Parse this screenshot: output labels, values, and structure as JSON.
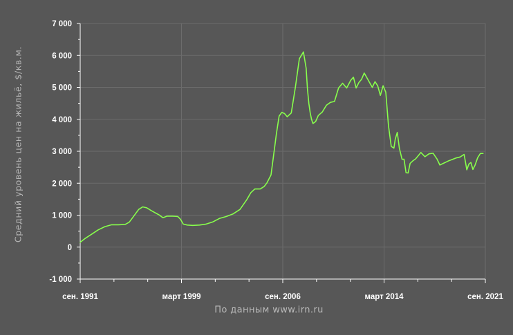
{
  "chart_data": {
    "type": "line",
    "ylabel": "Средний уровень цен на жильё, $/кв.м.",
    "source_note": "По данным www.irn.ru",
    "ylim": [
      -1000,
      7000
    ],
    "xlim": [
      1991.67,
      2021.67
    ],
    "grid": true,
    "colors": {
      "background": "#575757",
      "grid": "#6c6c6c",
      "axis": "#ffffff",
      "text": "#ffffff",
      "line": "#88ff4c"
    },
    "y_ticks": [
      {
        "value": 7000,
        "label": "7 000"
      },
      {
        "value": 6000,
        "label": "6 000"
      },
      {
        "value": 5000,
        "label": "5 000"
      },
      {
        "value": 4000,
        "label": "4 000"
      },
      {
        "value": 3000,
        "label": "3 000"
      },
      {
        "value": 2000,
        "label": "2 000"
      },
      {
        "value": 1000,
        "label": "1 000"
      },
      {
        "value": 0,
        "label": "0"
      },
      {
        "value": -1000,
        "label": "-1 000"
      }
    ],
    "x_ticks": [
      {
        "value": 1991.67,
        "label": "сен. 1991"
      },
      {
        "value": 1999.17,
        "label": "март 1999"
      },
      {
        "value": 2006.67,
        "label": "сен. 2006"
      },
      {
        "value": 2014.17,
        "label": "март 2014"
      },
      {
        "value": 2021.67,
        "label": "сен. 2021"
      }
    ],
    "series": [
      {
        "x": [
          1991.67,
          1992.0,
          1992.5,
          1993.0,
          1993.5,
          1994.0,
          1994.5,
          1995.0,
          1995.3,
          1995.6,
          1996.0,
          1996.3,
          1996.6,
          1996.9,
          1997.2,
          1997.5,
          1997.8,
          1998.1,
          1998.5,
          1998.9,
          1999.1,
          1999.3,
          1999.6,
          2000.0,
          2000.5,
          2001.0,
          2001.5,
          2002.0,
          2002.5,
          2003.0,
          2003.5,
          2004.0,
          2004.3,
          2004.6,
          2005.0,
          2005.3,
          2005.5,
          2005.8,
          2006.0,
          2006.2,
          2006.4,
          2006.6,
          2006.8,
          2007.0,
          2007.3,
          2007.6,
          2007.9,
          2008.2,
          2008.4,
          2008.5,
          2008.6,
          2008.7,
          2008.8,
          2008.9,
          2009.1,
          2009.3,
          2009.6,
          2009.9,
          2010.2,
          2010.5,
          2010.8,
          2011.1,
          2011.4,
          2011.7,
          2011.9,
          2012.1,
          2012.3,
          2012.5,
          2012.7,
          2012.9,
          2013.1,
          2013.3,
          2013.5,
          2013.7,
          2013.9,
          2014.1,
          2014.3,
          2014.5,
          2014.7,
          2014.9,
          2015.0,
          2015.15,
          2015.3,
          2015.5,
          2015.65,
          2015.8,
          2015.95,
          2016.1,
          2016.3,
          2016.5,
          2016.7,
          2016.9,
          2017.2,
          2017.5,
          2017.8,
          2018.1,
          2018.3,
          2018.6,
          2018.9,
          2019.2,
          2019.5,
          2019.8,
          2020.1,
          2020.3,
          2020.45,
          2020.6,
          2020.75,
          2020.9,
          2021.1,
          2021.3,
          2021.5
        ],
        "y": [
          150,
          260,
          400,
          540,
          640,
          700,
          700,
          710,
          780,
          950,
          1180,
          1260,
          1230,
          1150,
          1080,
          1010,
          920,
          970,
          970,
          960,
          870,
          720,
          690,
          680,
          690,
          720,
          790,
          900,
          960,
          1040,
          1180,
          1480,
          1700,
          1820,
          1820,
          1900,
          2010,
          2260,
          2900,
          3550,
          4100,
          4220,
          4180,
          4080,
          4200,
          5000,
          5900,
          6110,
          5600,
          4950,
          4500,
          4200,
          4000,
          3870,
          3930,
          4120,
          4230,
          4440,
          4530,
          4560,
          4980,
          5130,
          4980,
          5220,
          5320,
          4980,
          5150,
          5250,
          5450,
          5300,
          5150,
          5000,
          5180,
          5050,
          4750,
          5050,
          4850,
          3800,
          3150,
          3100,
          3380,
          3590,
          3100,
          2750,
          2750,
          2330,
          2320,
          2620,
          2700,
          2760,
          2860,
          2960,
          2830,
          2920,
          2940,
          2750,
          2570,
          2630,
          2690,
          2740,
          2790,
          2820,
          2900,
          2420,
          2600,
          2650,
          2430,
          2560,
          2800,
          2930,
          2930
        ]
      }
    ]
  }
}
